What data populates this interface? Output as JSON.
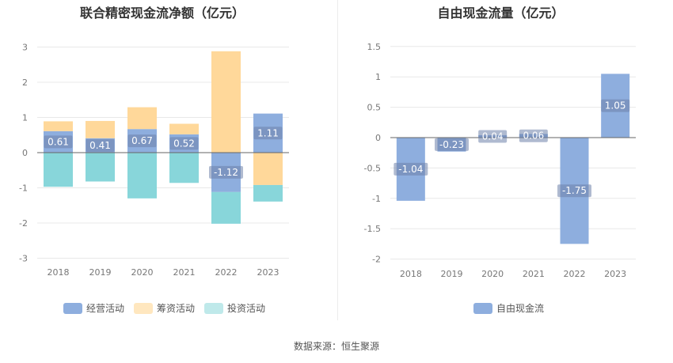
{
  "source_label": "数据来源：恒生聚源",
  "colors": {
    "operating": "#8eaede",
    "financing": "#ffd89a",
    "investing": "#88d6da",
    "fcf": "#8eaede",
    "grid": "#e8e8e8",
    "zero_line": "#666666",
    "tick_text": "#777777"
  },
  "chart_data": [
    {
      "type": "bar",
      "stacked": true,
      "title": "联合精密现金流净额（亿元）",
      "categories": [
        "2018",
        "2019",
        "2020",
        "2021",
        "2022",
        "2023"
      ],
      "ylim": [
        -3,
        3
      ],
      "yticks": [
        -3,
        -2,
        -1,
        0,
        1,
        2,
        3
      ],
      "grid": true,
      "legend_position": "bottom",
      "series": [
        {
          "name": "经营活动",
          "key": "operating",
          "values": [
            0.61,
            0.41,
            0.67,
            0.52,
            -1.12,
            1.11
          ],
          "labels": [
            "0.61",
            "0.41",
            "0.67",
            "0.52",
            "-1.12",
            "1.11"
          ]
        },
        {
          "name": "筹资活动",
          "key": "financing",
          "values": [
            0.28,
            0.49,
            0.62,
            0.3,
            2.88,
            -0.92
          ]
        },
        {
          "name": "投资活动",
          "key": "investing",
          "values": [
            -0.97,
            -0.82,
            -1.3,
            -0.86,
            -0.9,
            -0.47
          ]
        }
      ]
    },
    {
      "type": "bar",
      "title": "自由现金流量（亿元）",
      "categories": [
        "2018",
        "2019",
        "2020",
        "2021",
        "2022",
        "2023"
      ],
      "ylim": [
        -2,
        1.5
      ],
      "yticks": [
        -2,
        -1.5,
        -1,
        -0.5,
        0,
        0.5,
        1,
        1.5
      ],
      "grid": true,
      "legend_position": "bottom",
      "series": [
        {
          "name": "自由现金流",
          "key": "fcf",
          "values": [
            -1.04,
            -0.23,
            0.04,
            0.06,
            -1.75,
            1.05
          ],
          "labels": [
            "-1.04",
            "-0.23",
            "0.04",
            "0.06",
            "-1.75",
            "1.05"
          ]
        }
      ]
    }
  ]
}
